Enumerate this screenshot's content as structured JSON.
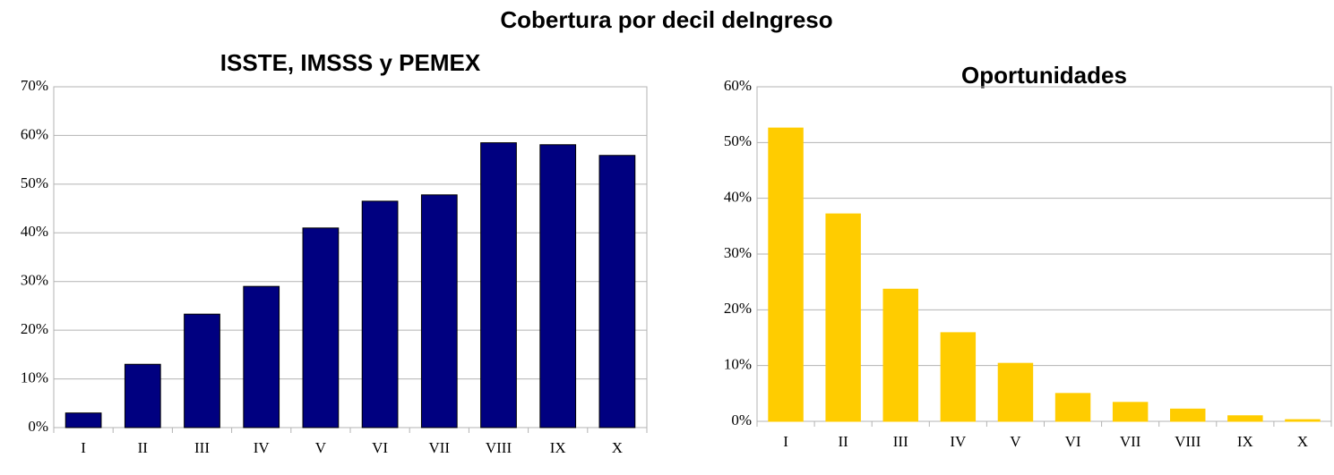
{
  "title": "Cobertura  por decil deIngreso",
  "chart_data": [
    {
      "type": "bar",
      "title": "ISSTE, IMSSS y PEMEX",
      "categories": [
        "I",
        "II",
        "III",
        "IV",
        "V",
        "VI",
        "VII",
        "VIII",
        "IX",
        "X"
      ],
      "values": [
        3,
        13,
        23.3,
        29,
        41,
        46.5,
        47.8,
        58.5,
        58.1,
        55.9
      ],
      "color": "#000080",
      "edge": "#000000",
      "ylim": [
        0,
        70
      ],
      "yticks": [
        {
          "value": 0,
          "label": "0%"
        },
        {
          "value": 10,
          "label": "10%"
        },
        {
          "value": 20,
          "label": "20%"
        },
        {
          "value": 30,
          "label": "30%"
        },
        {
          "value": 40,
          "label": "40%"
        },
        {
          "value": 50,
          "label": "50%"
        },
        {
          "value": 60,
          "label": "60%"
        },
        {
          "value": 70,
          "label": "70%"
        }
      ],
      "grid": true
    },
    {
      "type": "bar",
      "title": "Oportunidades",
      "categories": [
        "I",
        "II",
        "III",
        "IV",
        "V",
        "VI",
        "VII",
        "VIII",
        "IX",
        "X"
      ],
      "values": [
        52.6,
        37.2,
        23.7,
        15.9,
        10.4,
        5,
        3.4,
        2.2,
        1,
        0.3
      ],
      "color": "#ffcc00",
      "edge": "#ffcc00",
      "ylim": [
        0,
        60
      ],
      "yticks": [
        {
          "value": 0,
          "label": "0%"
        },
        {
          "value": 10,
          "label": "10%"
        },
        {
          "value": 20,
          "label": "20%"
        },
        {
          "value": 30,
          "label": "30%"
        },
        {
          "value": 40,
          "label": "40%"
        },
        {
          "value": 50,
          "label": "50%"
        },
        {
          "value": 60,
          "label": "60%"
        }
      ],
      "grid": true
    }
  ]
}
